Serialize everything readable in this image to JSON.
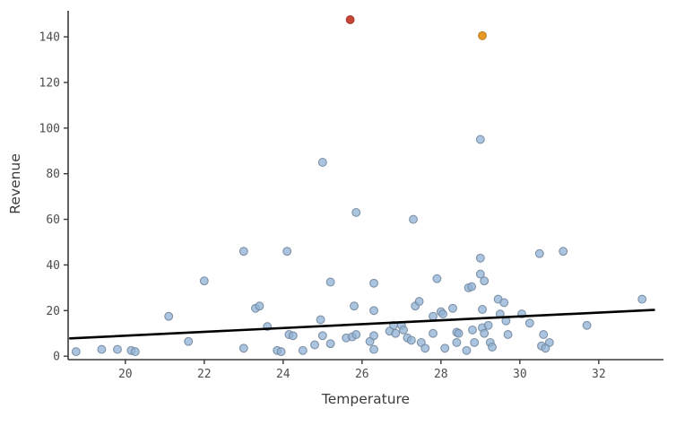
{
  "chart_data": {
    "type": "scatter",
    "title": "",
    "xlabel": "Temperature",
    "ylabel": "Revenue",
    "xlim": [
      18.55,
      33.64
    ],
    "ylim": [
      -1.5,
      153
    ],
    "x_ticks": [
      20,
      22,
      24,
      26,
      28,
      30,
      32
    ],
    "y_ticks": [
      0,
      20,
      40,
      60,
      80,
      100,
      120,
      140
    ],
    "grid": false,
    "legend_position": "none",
    "series": [
      {
        "name": "observations",
        "marker": "circle",
        "fill_color": "#8fb2d6",
        "edge_color": "#74889f",
        "fill_opacity": 0.75,
        "points": [
          [
            18.75,
            2
          ],
          [
            19.4,
            3
          ],
          [
            19.8,
            3
          ],
          [
            20.15,
            2.5
          ],
          [
            20.25,
            2
          ],
          [
            21.1,
            17.5
          ],
          [
            21.6,
            6.5
          ],
          [
            22.0,
            33
          ],
          [
            23.0,
            3.5
          ],
          [
            23.0,
            46
          ],
          [
            23.3,
            21
          ],
          [
            23.4,
            22
          ],
          [
            23.6,
            13
          ],
          [
            23.85,
            2.5
          ],
          [
            23.95,
            2
          ],
          [
            24.1,
            46
          ],
          [
            24.15,
            9.5
          ],
          [
            24.25,
            9
          ],
          [
            24.5,
            2.5
          ],
          [
            24.8,
            5
          ],
          [
            24.95,
            16
          ],
          [
            25.0,
            9
          ],
          [
            25.0,
            85
          ],
          [
            25.2,
            32.5
          ],
          [
            25.2,
            5.5
          ],
          [
            25.6,
            8
          ],
          [
            25.75,
            8.5
          ],
          [
            25.85,
            9.5
          ],
          [
            25.8,
            22
          ],
          [
            25.85,
            63
          ],
          [
            26.2,
            6.5
          ],
          [
            26.3,
            9
          ],
          [
            26.3,
            3
          ],
          [
            26.3,
            32
          ],
          [
            26.3,
            20
          ],
          [
            26.7,
            11
          ],
          [
            26.8,
            13.5
          ],
          [
            26.85,
            10
          ],
          [
            27.0,
            13.5
          ],
          [
            27.05,
            11.5
          ],
          [
            27.15,
            8
          ],
          [
            27.25,
            7
          ],
          [
            27.3,
            60
          ],
          [
            27.35,
            22
          ],
          [
            27.45,
            24
          ],
          [
            27.5,
            6
          ],
          [
            27.6,
            3.5
          ],
          [
            27.8,
            17.5
          ],
          [
            27.8,
            10
          ],
          [
            27.9,
            34
          ],
          [
            28.0,
            19.5
          ],
          [
            28.05,
            18.5
          ],
          [
            28.1,
            3.5
          ],
          [
            28.3,
            21
          ],
          [
            28.4,
            10.5
          ],
          [
            28.45,
            10
          ],
          [
            28.4,
            6
          ],
          [
            28.65,
            2.5
          ],
          [
            28.7,
            30
          ],
          [
            28.78,
            30.5
          ],
          [
            28.8,
            11.5
          ],
          [
            28.85,
            6
          ],
          [
            29.0,
            95
          ],
          [
            29.0,
            43
          ],
          [
            29.0,
            36
          ],
          [
            29.1,
            33
          ],
          [
            29.05,
            20.5
          ],
          [
            29.05,
            12.5
          ],
          [
            29.1,
            10
          ],
          [
            29.2,
            13.5
          ],
          [
            29.25,
            6
          ],
          [
            29.3,
            4
          ],
          [
            29.45,
            25
          ],
          [
            29.6,
            23.5
          ],
          [
            29.5,
            18.5
          ],
          [
            29.65,
            15.5
          ],
          [
            29.7,
            9.5
          ],
          [
            30.05,
            18.5
          ],
          [
            30.25,
            14.5
          ],
          [
            30.5,
            45
          ],
          [
            30.6,
            9.5
          ],
          [
            30.75,
            6
          ],
          [
            30.55,
            4.5
          ],
          [
            30.65,
            3.5
          ],
          [
            31.1,
            46
          ],
          [
            31.7,
            13.5
          ],
          [
            33.1,
            25
          ]
        ]
      },
      {
        "name": "outlier-red",
        "marker": "circle",
        "fill_color": "#c23b2b",
        "edge_color": "#9d3226",
        "fill_opacity": 0.95,
        "points": [
          [
            25.7,
            147.5
          ]
        ]
      },
      {
        "name": "outlier-orange",
        "marker": "circle",
        "fill_color": "#e7941a",
        "edge_color": "#bb7a1a",
        "fill_opacity": 0.95,
        "points": [
          [
            29.05,
            140.5
          ]
        ]
      }
    ],
    "trend_line": {
      "name": "regression-line",
      "color": "#000000",
      "width": 2.6,
      "from": [
        18.6,
        7.8
      ],
      "to": [
        33.4,
        20.3
      ]
    },
    "axis_color": "#3a3a3a",
    "tick_label_color": "#4d4d4d"
  }
}
